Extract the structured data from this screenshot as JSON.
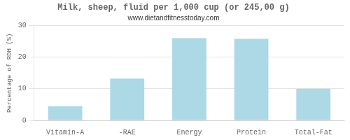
{
  "chart_data": {
    "type": "bar",
    "title": "Milk, sheep, fluid per 1,000 cup (or 245,00 g)",
    "subtitle": "www.dietandfitnesstoday.com",
    "categories": [
      "Vitamin-A",
      "-RAE",
      "Energy",
      "Protein",
      "Total-Fat"
    ],
    "values": [
      4.5,
      13.2,
      26.0,
      25.8,
      10.0
    ],
    "color": "#add8e6",
    "ylabel": "Percentage of RDH (%)",
    "ylim": [
      0,
      30
    ],
    "yticks": [
      0,
      10,
      20,
      30
    ],
    "grid": true
  }
}
